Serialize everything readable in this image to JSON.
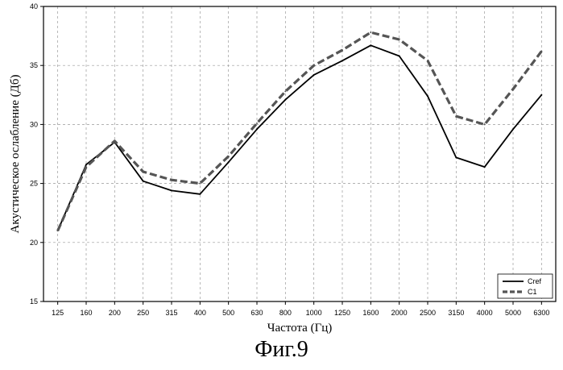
{
  "chart_data": {
    "type": "line",
    "title": "",
    "xlabel": "Частота (Гц)",
    "ylabel": "Акустическое ослабление (Дб)",
    "categories": [
      "125",
      "160",
      "200",
      "250",
      "315",
      "400",
      "500",
      "630",
      "800",
      "1000",
      "1250",
      "1600",
      "2000",
      "2500",
      "3150",
      "4000",
      "5000",
      "6300"
    ],
    "ylim": [
      15,
      40
    ],
    "yticks": [
      15,
      20,
      25,
      30,
      35,
      40
    ],
    "grid": true,
    "legend_position": "bottom-right",
    "series": [
      {
        "name": "Cref",
        "style": "solid",
        "color": "#000000",
        "values": [
          21.0,
          26.6,
          28.5,
          25.2,
          24.4,
          24.1,
          26.8,
          29.6,
          32.1,
          34.2,
          35.4,
          36.7,
          35.8,
          32.4,
          27.2,
          26.4,
          29.6,
          32.5
        ]
      },
      {
        "name": "C1",
        "style": "dashed",
        "color": "#555555",
        "values": [
          21.0,
          26.4,
          28.6,
          26.0,
          25.3,
          25.0,
          27.3,
          30.1,
          32.8,
          35.0,
          36.3,
          37.8,
          37.2,
          35.4,
          30.7,
          30.0,
          33.0,
          36.2
        ]
      }
    ]
  },
  "caption": "Фиг.9"
}
